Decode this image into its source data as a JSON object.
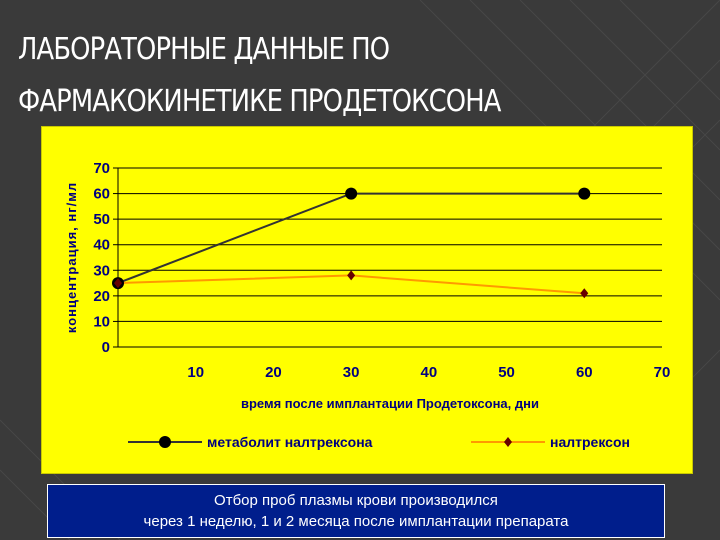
{
  "slide": {
    "title_line1": "ЛАБОРАТОРНЫЕ ДАННЫЕ ПО",
    "title_line2": "ФАРМАКОКИНЕТИКЕ ПРОДЕТОКСОНА",
    "note_line1": "Отбор проб плазмы крови производился",
    "note_line2": "через 1 неделю, 1 и 2 месяца после имплантации препарата"
  },
  "colors": {
    "background": "#3a3a3a",
    "chart_background": "#ffff00",
    "metabolite_series": "#333333",
    "naltrexone_series": "#ff9900",
    "naltrexone_marker": "#660000",
    "axis_text": "#000080",
    "note_background": "#001e8c"
  },
  "chart_data": {
    "type": "line",
    "title": "",
    "xlabel": "время после имплантации Продетоксона, дни",
    "ylabel": "концентрация, нг/мл",
    "x_ticks": [
      10,
      20,
      30,
      40,
      50,
      60,
      70
    ],
    "y_ticks": [
      0,
      10,
      20,
      30,
      40,
      50,
      60,
      70
    ],
    "xlim": [
      0,
      70
    ],
    "ylim": [
      0,
      70
    ],
    "grid": "horizontal",
    "legend_position": "bottom",
    "series": [
      {
        "name": "метаболит налтрексона",
        "marker": "circle",
        "points": [
          [
            0,
            25
          ],
          [
            30,
            60
          ],
          [
            60,
            60
          ]
        ]
      },
      {
        "name": "налтрексон",
        "marker": "diamond",
        "points": [
          [
            0,
            25
          ],
          [
            30,
            28
          ],
          [
            60,
            21
          ]
        ]
      }
    ]
  }
}
